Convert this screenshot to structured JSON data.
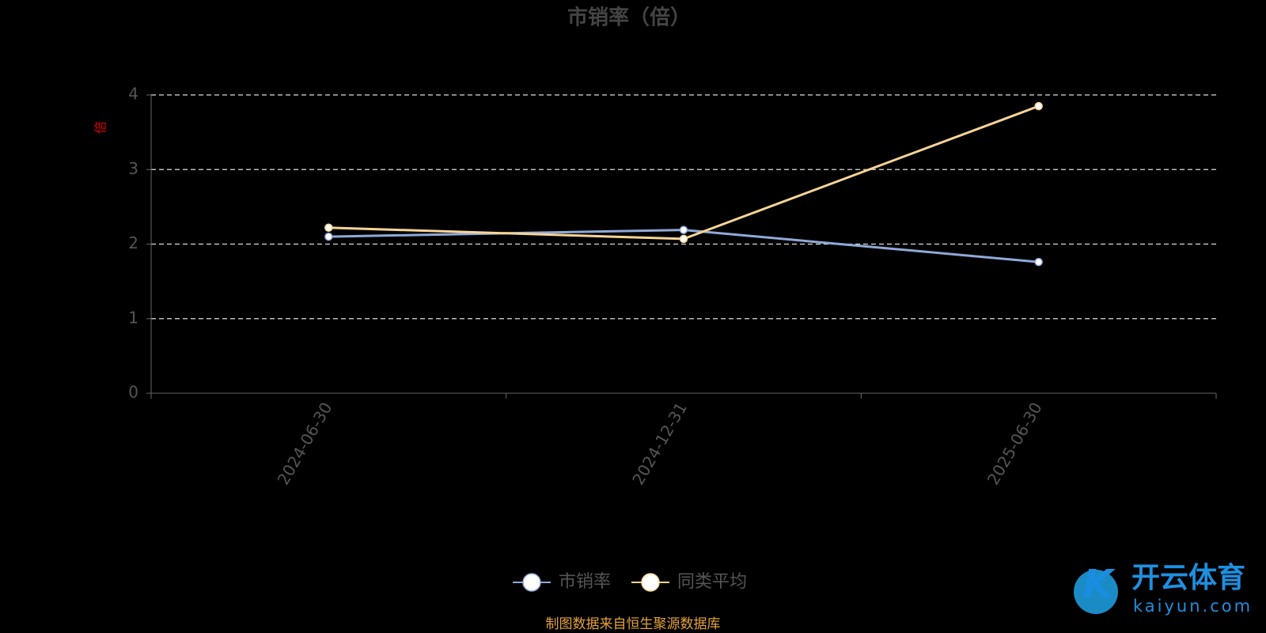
{
  "chart_data": {
    "type": "line",
    "title": "市销率（倍）",
    "y_label": "倍",
    "categories": [
      "2024-06-30",
      "2024-12-31",
      "2025-06-30"
    ],
    "series": [
      {
        "name": "市销率",
        "color": "#8fa9d8",
        "values": [
          2.1,
          2.19,
          1.76
        ]
      },
      {
        "name": "同类平均",
        "color": "#f7d494",
        "values": [
          2.22,
          2.07,
          3.85
        ]
      }
    ],
    "ylim": [
      0,
      4
    ],
    "yticks": [
      0,
      1,
      2,
      3,
      4
    ],
    "grid": true,
    "source": "制图数据来自恒生聚源数据库",
    "watermark": {
      "brand": "开云体育",
      "site": "kaiyun.com"
    }
  }
}
